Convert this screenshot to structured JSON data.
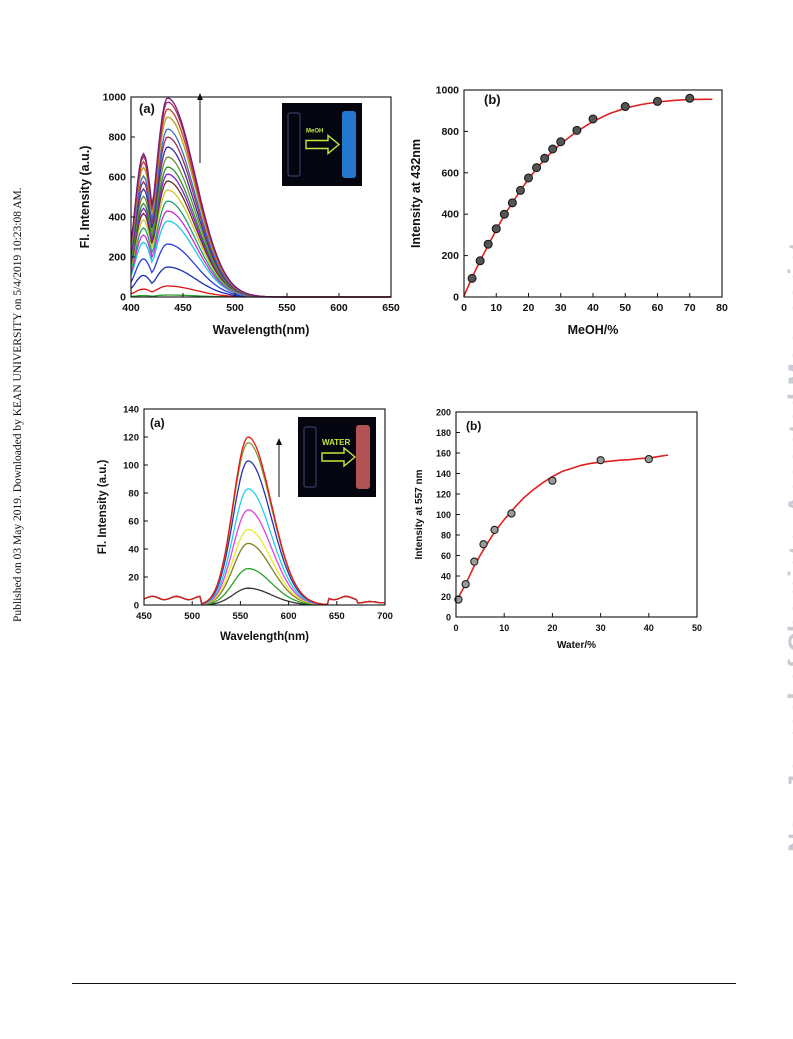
{
  "page": {
    "side_note": "Published on 03 May 2019. Downloaded by KEAN UNIVERSITY on 5/4/2019 10:23:08 AM.",
    "watermark": "New Journal of Chemistry Accepted Manuscript"
  },
  "chart_data": [
    {
      "type": "line",
      "panel_label": "(a)",
      "xlabel": "Wavelength(nm)",
      "ylabel": "Fl. Intensity (a.u.)",
      "xlim": [
        400,
        650
      ],
      "ylim": [
        0,
        1000
      ],
      "xticks": [
        400,
        450,
        500,
        550,
        600,
        650
      ],
      "yticks": [
        0,
        200,
        400,
        600,
        800,
        1000
      ],
      "peak_x": 435,
      "inset": {
        "label": "MeOH",
        "description": "cuvette photo dark to blue emission"
      },
      "series_peaks": [
        10,
        55,
        150,
        265,
        380,
        430,
        480,
        535,
        580,
        615,
        650,
        700,
        750,
        800,
        840,
        900,
        940,
        975,
        995
      ],
      "series_colors": [
        "#2aa02a",
        "#e01010",
        "#1a2fb0",
        "#2b3bd8",
        "#19c8e0",
        "#d12bd1",
        "#1aa07a",
        "#c8c82a",
        "#6d2f1e",
        "#8a1ae0",
        "#2a8f2a",
        "#6a8f2a",
        "#3a2aa8",
        "#9c2a5a",
        "#3a6fc8",
        "#b8a020",
        "#c8402a",
        "#a0306a",
        "#7a1a70"
      ],
      "grid": false
    },
    {
      "type": "scatter",
      "panel_label": "(b)",
      "xlabel": "MeOH/%",
      "ylabel": "Intensity at 432nm",
      "xlim": [
        0,
        80
      ],
      "ylim": [
        0,
        1000
      ],
      "xticks": [
        0,
        10,
        20,
        30,
        40,
        50,
        60,
        70,
        80
      ],
      "yticks": [
        0,
        200,
        400,
        600,
        800,
        1000
      ],
      "points": [
        [
          2.5,
          90
        ],
        [
          5,
          175
        ],
        [
          7.5,
          255
        ],
        [
          10,
          330
        ],
        [
          12.5,
          400
        ],
        [
          15,
          455
        ],
        [
          17.5,
          515
        ],
        [
          20,
          575
        ],
        [
          22.5,
          625
        ],
        [
          25,
          670
        ],
        [
          27.5,
          715
        ],
        [
          30,
          750
        ],
        [
          35,
          805
        ],
        [
          40,
          860
        ],
        [
          50,
          920
        ],
        [
          60,
          945
        ],
        [
          70,
          960
        ]
      ],
      "fit": [
        [
          0,
          5
        ],
        [
          2.5,
          95
        ],
        [
          5,
          175
        ],
        [
          7.5,
          250
        ],
        [
          10,
          325
        ],
        [
          12.5,
          395
        ],
        [
          15,
          455
        ],
        [
          17.5,
          515
        ],
        [
          20,
          570
        ],
        [
          22.5,
          620
        ],
        [
          25,
          665
        ],
        [
          27.5,
          705
        ],
        [
          30,
          740
        ],
        [
          35,
          800
        ],
        [
          40,
          848
        ],
        [
          45,
          885
        ],
        [
          50,
          912
        ],
        [
          55,
          930
        ],
        [
          60,
          942
        ],
        [
          65,
          950
        ],
        [
          70,
          954
        ],
        [
          75,
          955
        ],
        [
          77,
          955
        ]
      ],
      "fit_color": "#e02020",
      "grid": false
    },
    {
      "type": "line",
      "panel_label": "(a)",
      "xlabel": "Wavelength(nm)",
      "ylabel": "Fl. Intensity (a.u.)",
      "xlim": [
        450,
        700
      ],
      "ylim": [
        0,
        140
      ],
      "xticks": [
        450,
        500,
        550,
        600,
        650,
        700
      ],
      "yticks": [
        0,
        20,
        40,
        60,
        80,
        100,
        120,
        140
      ],
      "peak_x": 558,
      "inset": {
        "label": "WATER",
        "description": "cuvette photo dark to orange emission"
      },
      "series_peaks": [
        12,
        26,
        44,
        54,
        68,
        83,
        103,
        116,
        120
      ],
      "series_colors": [
        "#333333",
        "#2aa02a",
        "#808020",
        "#e8e830",
        "#e040e0",
        "#20d0e8",
        "#2a30b8",
        "#909030",
        "#e01818"
      ],
      "grid": false
    },
    {
      "type": "scatter",
      "panel_label": "(b)",
      "xlabel": "Water/%",
      "ylabel": "Intensity at 557 nm",
      "xlim": [
        0,
        50
      ],
      "ylim": [
        0,
        200
      ],
      "xticks": [
        0,
        10,
        20,
        30,
        40,
        50
      ],
      "yticks": [
        0,
        20,
        40,
        60,
        80,
        100,
        120,
        140,
        160,
        180,
        200
      ],
      "points": [
        [
          0.5,
          17
        ],
        [
          2,
          32
        ],
        [
          3.8,
          54
        ],
        [
          5.7,
          71
        ],
        [
          8,
          85
        ],
        [
          11.5,
          101
        ],
        [
          20,
          133
        ],
        [
          30,
          153
        ],
        [
          40,
          154
        ]
      ],
      "fit": [
        [
          0,
          15
        ],
        [
          2,
          32
        ],
        [
          4,
          52
        ],
        [
          6,
          68
        ],
        [
          8,
          83
        ],
        [
          10,
          95
        ],
        [
          12,
          106
        ],
        [
          14,
          116
        ],
        [
          16,
          124
        ],
        [
          18,
          131
        ],
        [
          20,
          137
        ],
        [
          22,
          142
        ],
        [
          24,
          145
        ],
        [
          26,
          148
        ],
        [
          28,
          150
        ],
        [
          30,
          151
        ],
        [
          32,
          152
        ],
        [
          34,
          153
        ],
        [
          36,
          153.5
        ],
        [
          38,
          154.5
        ],
        [
          40,
          155
        ],
        [
          42,
          156.5
        ],
        [
          44,
          158
        ]
      ],
      "fit_color": "#e02020",
      "grid": false
    }
  ]
}
